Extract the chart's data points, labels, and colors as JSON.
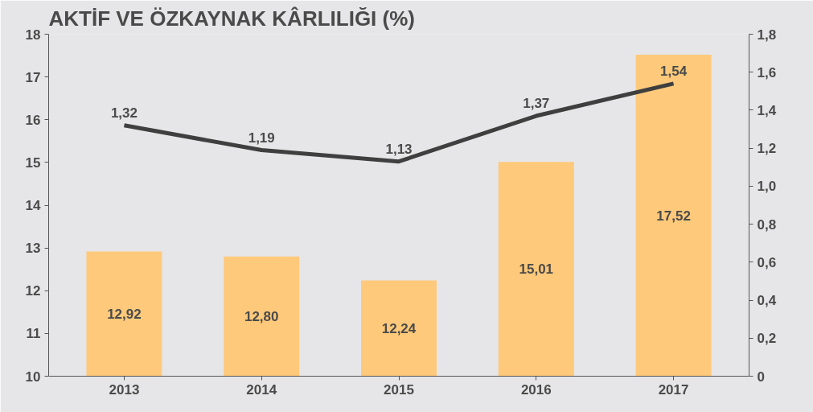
{
  "chart_data": {
    "type": "bar",
    "title": "AKTİF VE ÖZKAYNAK KÂRLILIĞI (%)",
    "categories": [
      "2013",
      "2014",
      "2015",
      "2016",
      "2017"
    ],
    "series": [
      {
        "color": "#fec97a",
        "values": [
          12.92,
          12.8,
          12.24,
          15.01,
          17.52
        ],
        "value_labels": [
          "12,92",
          "12,80",
          "12,24",
          "15,01",
          "17,52"
        ]
      },
      {
        "type": "line",
        "axis": "y2",
        "color": "#3f3f3f",
        "values": [
          1.32,
          1.19,
          1.13,
          1.37,
          1.54
        ],
        "value_labels": [
          "1,32",
          "1,19",
          "1,13",
          "1,37",
          "1,54"
        ]
      }
    ],
    "ylim": [
      10,
      18
    ],
    "yticks": [
      10,
      11,
      12,
      13,
      14,
      15,
      16,
      17,
      18
    ],
    "y2lim": [
      0,
      1.8
    ],
    "y2ticks": [
      0,
      {
        "value": 0.2,
        "label": "0,2"
      },
      {
        "value": 0.4,
        "label": "0,4"
      },
      {
        "value": 0.6,
        "label": "0,6"
      },
      {
        "value": 0.8,
        "label": "0,8"
      },
      {
        "value": 1.0,
        "label": "1,0"
      },
      {
        "value": 1.2,
        "label": "1,2"
      },
      {
        "value": 1.4,
        "label": "1,4"
      },
      {
        "value": 1.6,
        "label": "1,6"
      },
      {
        "value": 1.8,
        "label": "1,8"
      }
    ],
    "marker": "none",
    "line_style": "solid"
  }
}
